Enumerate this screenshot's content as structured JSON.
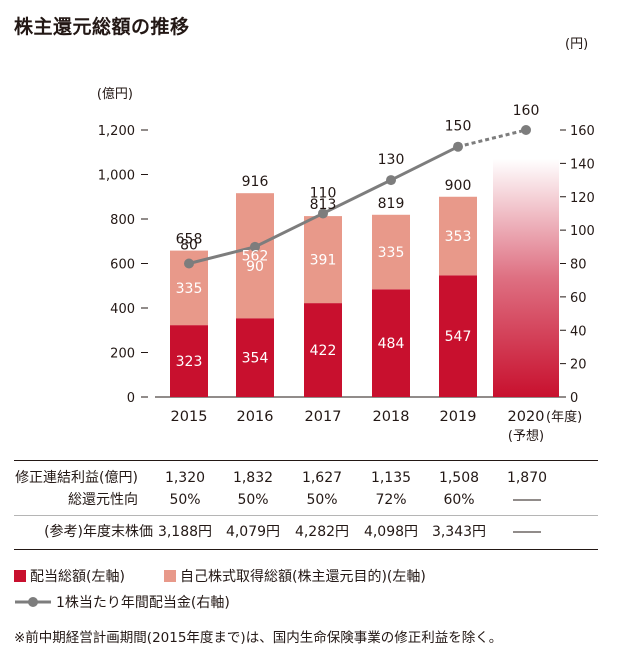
{
  "title": "株主還元総額の推移",
  "chart_data": {
    "type": "bar",
    "categories": [
      "2015",
      "2016",
      "2017",
      "2018",
      "2019",
      "2020"
    ],
    "category_note_2020": "(予想)",
    "x_unit": "(年度)",
    "left_axis": {
      "unit": "(億円)",
      "ylim": [
        0,
        1200
      ],
      "ticks": [
        "0",
        "200",
        "400",
        "600",
        "800",
        "1,000",
        "1,200"
      ],
      "tick_values": [
        0,
        200,
        400,
        600,
        800,
        1000,
        1200
      ]
    },
    "right_axis": {
      "unit": "(円)",
      "ylim": [
        0,
        160
      ],
      "ticks": [
        "0",
        "20",
        "40",
        "60",
        "80",
        "100",
        "120",
        "140",
        "160"
      ],
      "tick_values": [
        0,
        20,
        40,
        60,
        80,
        100,
        120,
        140,
        160
      ]
    },
    "series": [
      {
        "name": "配当総額(左軸)",
        "axis": "left",
        "values": [
          323,
          354,
          422,
          484,
          547,
          null
        ],
        "labels": [
          "323",
          "354",
          "422",
          "484",
          "547",
          ""
        ],
        "color": "#c8102e"
      },
      {
        "name": "自己株式取得総額(株主還元目的)(左軸)",
        "axis": "left",
        "values": [
          335,
          562,
          391,
          335,
          353,
          null
        ],
        "labels": [
          "335",
          "562",
          "391",
          "335",
          "353",
          ""
        ],
        "color": "#e8998a"
      },
      {
        "name": "1株当たり年間配当金(右軸)",
        "axis": "right",
        "type": "line",
        "values": [
          80,
          90,
          110,
          130,
          150,
          160
        ],
        "labels": [
          "80",
          "90",
          "110",
          "130",
          "150",
          "160"
        ],
        "color": "#7d7d7d"
      }
    ],
    "totals": [
      658,
      916,
      813,
      819,
      900,
      null
    ],
    "total_labels": [
      "658",
      "916",
      "813",
      "819",
      "900",
      ""
    ],
    "forecast_2020": {
      "label": "2020 forecast",
      "color": "#c8102e",
      "value": 1070
    }
  },
  "table": {
    "rows": [
      {
        "label": "修正連結利益(億円)",
        "values": [
          "1,320",
          "1,832",
          "1,627",
          "1,135",
          "1,508",
          "1,870"
        ]
      },
      {
        "label": "総還元性向",
        "values": [
          "50%",
          "50%",
          "50%",
          "72%",
          "60%",
          "――"
        ]
      },
      {
        "label": "(参考)年度末株価",
        "values": [
          "3,188円",
          "4,079円",
          "4,282円",
          "4,098円",
          "3,343円",
          "――"
        ]
      }
    ]
  },
  "legend": {
    "dividend": "配当総額(左軸)",
    "buyback": "自己株式取得総額(株主還元目的)(左軸)",
    "per_share": "1株当たり年間配当金(右軸)"
  },
  "note": "※前中期経営計画期間(2015年度まで)は、国内生命保険事業の修正利益を除く。"
}
